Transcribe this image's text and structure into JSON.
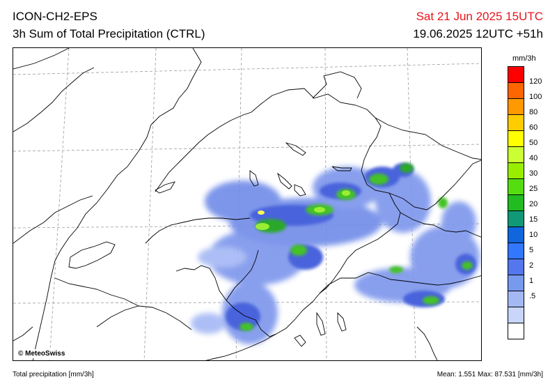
{
  "header": {
    "model": "ICON-CH2-EPS",
    "product": "3h Sum of Total Precipitation (CTRL)",
    "valid_time": "Sat 21 Jun 2025 15UTC",
    "run_time": "19.06.2025 12UTC +51h"
  },
  "map": {
    "credit": "© MeteoSwiss"
  },
  "legend": {
    "unit": "mm/3h",
    "ticks": [
      "120",
      "100",
      "80",
      "60",
      "50",
      "40",
      "30",
      "25",
      "20",
      "15",
      "10",
      "5",
      "2",
      "1",
      ".5"
    ],
    "colors": [
      "#ff0000",
      "#ff6600",
      "#ff9900",
      "#ffcc00",
      "#ffff00",
      "#ccff33",
      "#99ee00",
      "#55dd11",
      "#22bb22",
      "#119977",
      "#1166dd",
      "#3377ff",
      "#5577ee",
      "#7799ee",
      "#a4b8f4",
      "#c9d6fa",
      "#ffffff"
    ]
  },
  "footer": {
    "label": "Total precipitation [mm/3h]",
    "stats": "Mean:   1.551 Max:  87.531 [mm/3h]"
  }
}
